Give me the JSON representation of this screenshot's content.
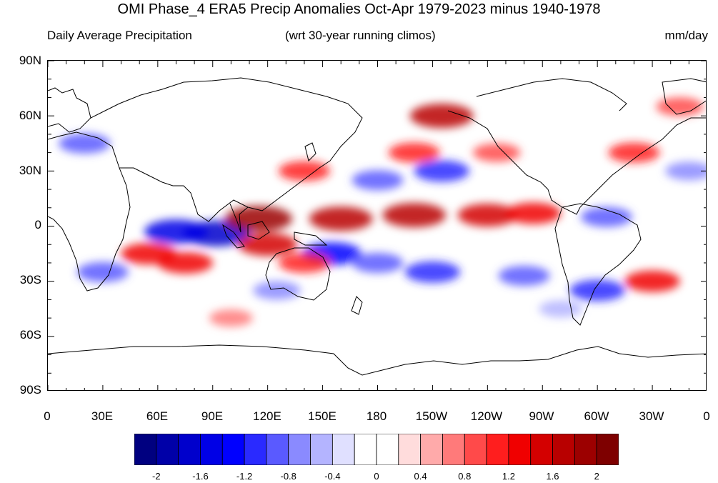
{
  "title": "OMI Phase_4 ERA5 Precip Anomalies Oct-Apr 1979-2023 minus 1940-1978",
  "subtitle_left": "Daily Average Precipitation",
  "subtitle_center": "(wrt 30-year running climos)",
  "subtitle_right": "mm/day",
  "lat_labels": [
    "90N",
    "60N",
    "30N",
    "0",
    "30S",
    "60S",
    "90S"
  ],
  "lon_labels": [
    "0",
    "30E",
    "60E",
    "90E",
    "120E",
    "150E",
    "180",
    "150W",
    "120W",
    "90W",
    "60W",
    "30W",
    "0"
  ],
  "colorbar": {
    "colors": [
      "#000080",
      "#0000a8",
      "#0000cc",
      "#0000e6",
      "#0000ff",
      "#2a2aff",
      "#5a5aff",
      "#8a8aff",
      "#b4b4ff",
      "#e0e0ff",
      "#ffffff",
      "#ffffff",
      "#ffdcdc",
      "#ffaaaa",
      "#ff7a7a",
      "#ff4a4a",
      "#ff1e1e",
      "#f00000",
      "#d40000",
      "#b80000",
      "#9c0000",
      "#7e0000"
    ],
    "tick_labels": [
      "-2",
      "-1.6",
      "-1.2",
      "-0.8",
      "-0.4",
      "0",
      "0.4",
      "0.8",
      "1.2",
      "1.6",
      "2"
    ]
  },
  "anomaly_patches": [
    {
      "lon": 92,
      "lat": -4,
      "value": -1.8
    },
    {
      "lon": 70,
      "lat": -3,
      "value": -1.6
    },
    {
      "lon": 115,
      "lat": 4,
      "value": 1.8
    },
    {
      "lon": 120,
      "lat": -10,
      "value": 1.4
    },
    {
      "lon": 160,
      "lat": 4,
      "value": 1.6
    },
    {
      "lon": 200,
      "lat": 6,
      "value": 1.6
    },
    {
      "lon": 240,
      "lat": 6,
      "value": 1.4
    },
    {
      "lon": 265,
      "lat": 7,
      "value": 1.2
    },
    {
      "lon": 155,
      "lat": -15,
      "value": -1.4
    },
    {
      "lon": 180,
      "lat": -20,
      "value": -1.0
    },
    {
      "lon": 210,
      "lat": -25,
      "value": -1.2
    },
    {
      "lon": 260,
      "lat": -27,
      "value": -1.0
    },
    {
      "lon": 55,
      "lat": -15,
      "value": 1.2
    },
    {
      "lon": 75,
      "lat": -20,
      "value": 1.2
    },
    {
      "lon": 30,
      "lat": -25,
      "value": -1.0
    },
    {
      "lon": 140,
      "lat": 30,
      "value": 1.0
    },
    {
      "lon": 180,
      "lat": 25,
      "value": -1.0
    },
    {
      "lon": 200,
      "lat": 40,
      "value": 1.0
    },
    {
      "lon": 215,
      "lat": 30,
      "value": -1.2
    },
    {
      "lon": 215,
      "lat": 60,
      "value": 1.6
    },
    {
      "lon": 320,
      "lat": 40,
      "value": 1.0
    },
    {
      "lon": 350,
      "lat": 30,
      "value": -0.8
    },
    {
      "lon": 305,
      "lat": 5,
      "value": -1.0
    },
    {
      "lon": 300,
      "lat": -35,
      "value": -1.2
    },
    {
      "lon": 330,
      "lat": -30,
      "value": 1.2
    },
    {
      "lon": 140,
      "lat": -20,
      "value": 1.0
    },
    {
      "lon": 125,
      "lat": -35,
      "value": -0.8
    },
    {
      "lon": 280,
      "lat": -45,
      "value": -0.6
    },
    {
      "lon": 20,
      "lat": 45,
      "value": -1.0
    },
    {
      "lon": 100,
      "lat": -50,
      "value": 0.6
    },
    {
      "lon": 245,
      "lat": 40,
      "value": 0.8
    },
    {
      "lon": 345,
      "lat": 65,
      "value": 0.8
    }
  ]
}
